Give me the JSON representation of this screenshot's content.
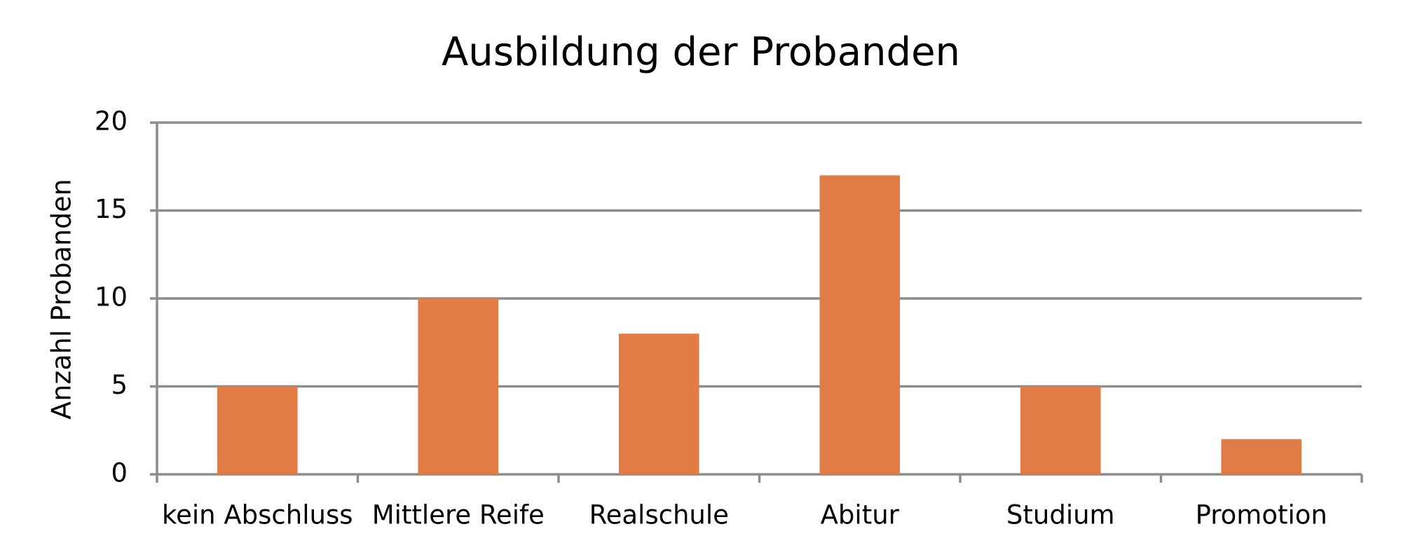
{
  "chart_data": {
    "type": "bar",
    "title": "Ausbildung der Probanden",
    "y_label": "Anzahl Probanden",
    "categories": [
      "kein Abschluss",
      "Mittlere Reife",
      "Realschule",
      "Abitur",
      "Studium",
      "Promotion"
    ],
    "values": [
      5,
      10,
      8,
      17,
      5,
      2
    ],
    "color": "#e27c46",
    "ylim": [
      0,
      20
    ],
    "yticks": [
      0,
      5,
      10,
      15,
      20
    ],
    "grid": true
  }
}
